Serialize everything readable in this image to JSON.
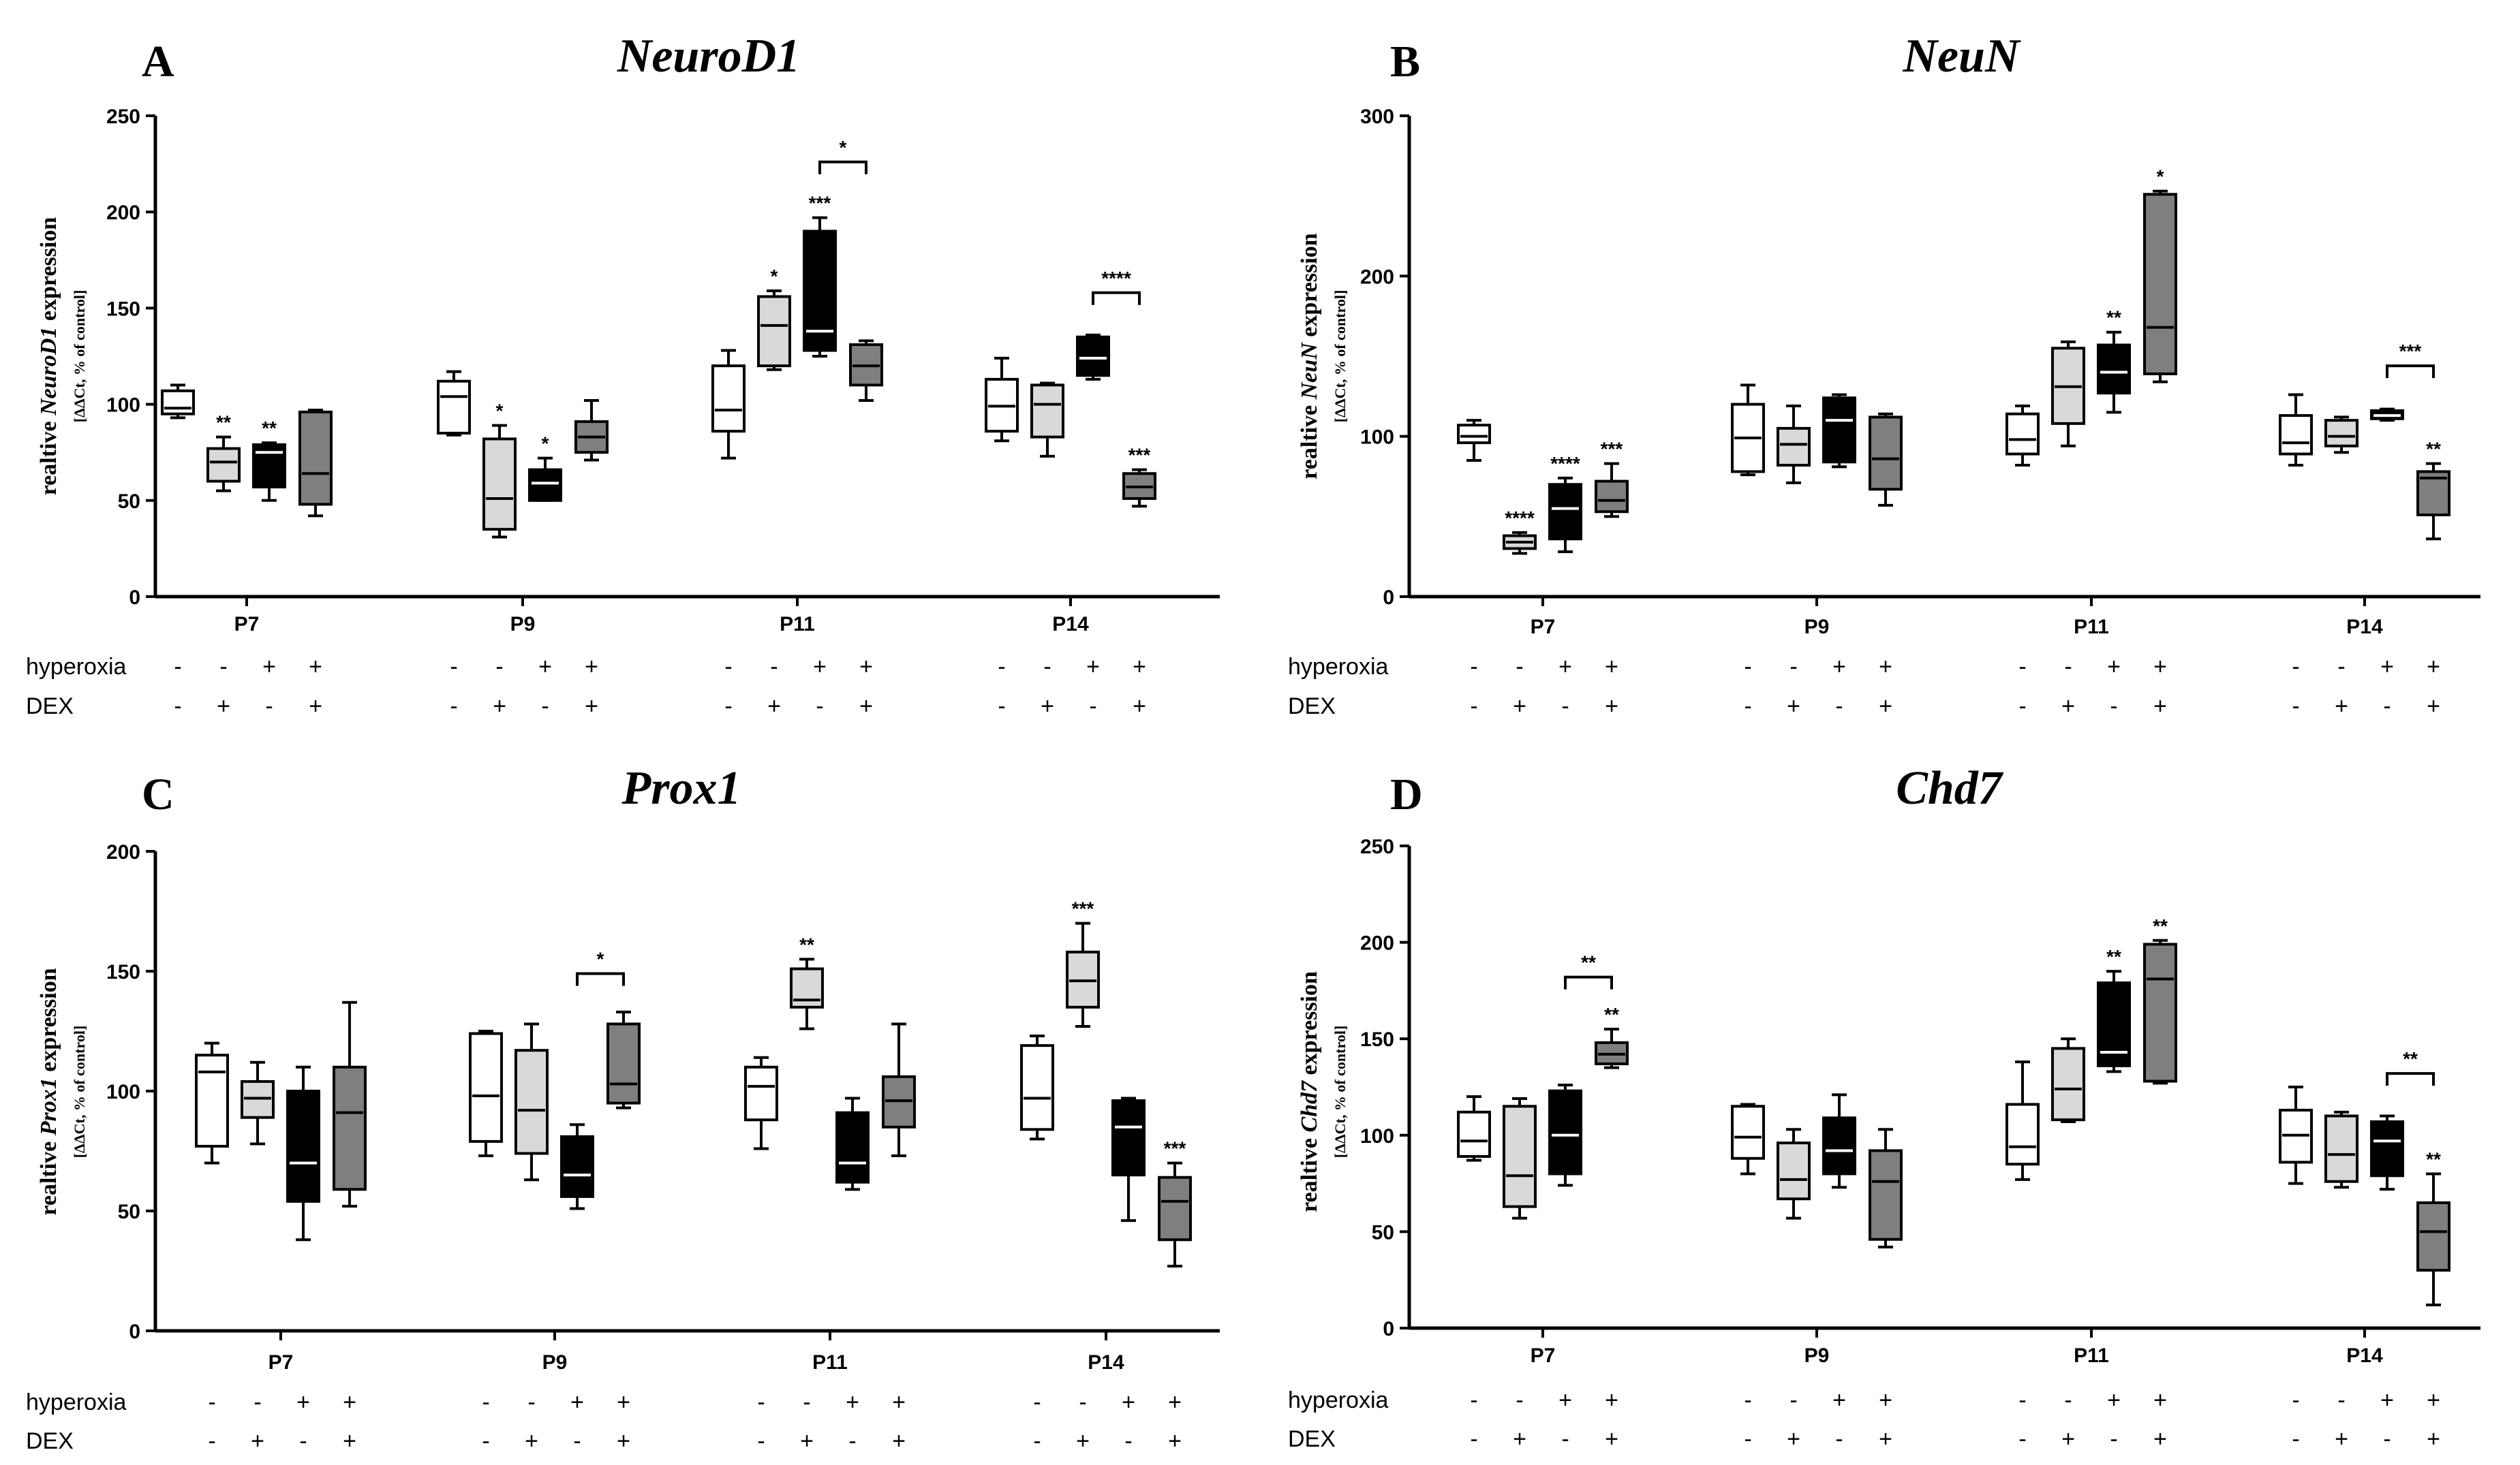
{
  "row_labels": {
    "hyperoxia": "hyperoxia",
    "dex": "DEX"
  },
  "conditions": {
    "hyperoxia": [
      "-",
      "-",
      "+",
      "+"
    ],
    "dex": [
      "-",
      "+",
      "-",
      "+"
    ]
  },
  "group_fills": [
    "#ffffff",
    "#d9d9d9",
    "#000000",
    "#7f7f7f"
  ],
  "chart_data": [
    {
      "panel": "A",
      "title": "NeuroD1",
      "type": "boxplot",
      "ylabel_prefix": "realtive ",
      "ylabel_gene": "NeuroD1",
      "ylabel_suffix": " expression",
      "ylabel_sub": "[ΔΔCt, % of control]",
      "ylim": [
        0,
        250
      ],
      "yticks": [
        "0",
        "50",
        "100",
        "150",
        "200",
        "250"
      ],
      "categories": [
        "P7",
        "P9",
        "P11",
        "P14"
      ],
      "boxes": [
        [
          {
            "min": 93,
            "q1": 95,
            "med": 98,
            "q3": 107,
            "max": 110,
            "sig": ""
          },
          {
            "min": 55,
            "q1": 60,
            "med": 70,
            "q3": 77,
            "max": 83,
            "sig": "**"
          },
          {
            "min": 50,
            "q1": 57,
            "med": 75,
            "q3": 79,
            "max": 80,
            "sig": "**"
          },
          {
            "min": 42,
            "q1": 48,
            "med": 64,
            "q3": 96,
            "max": 97,
            "sig": ""
          }
        ],
        [
          {
            "min": 84,
            "q1": 85,
            "med": 104,
            "q3": 112,
            "max": 117,
            "sig": ""
          },
          {
            "min": 31,
            "q1": 35,
            "med": 51,
            "q3": 82,
            "max": 89,
            "sig": "*"
          },
          {
            "min": 50,
            "q1": 50,
            "med": 59,
            "q3": 66,
            "max": 72,
            "sig": "*"
          },
          {
            "min": 71,
            "q1": 75,
            "med": 83,
            "q3": 91,
            "max": 102,
            "sig": ""
          }
        ],
        [
          {
            "min": 72,
            "q1": 86,
            "med": 97,
            "q3": 120,
            "max": 128,
            "sig": ""
          },
          {
            "min": 118,
            "q1": 120,
            "med": 141,
            "q3": 156,
            "max": 159,
            "sig": "*"
          },
          {
            "min": 125,
            "q1": 128,
            "med": 138,
            "q3": 190,
            "max": 197,
            "sig": "***"
          },
          {
            "min": 102,
            "q1": 110,
            "med": 120,
            "q3": 131,
            "max": 133,
            "sig": ""
          }
        ],
        [
          {
            "min": 81,
            "q1": 86,
            "med": 99,
            "q3": 113,
            "max": 124,
            "sig": ""
          },
          {
            "min": 73,
            "q1": 83,
            "med": 100,
            "q3": 110,
            "max": 111,
            "sig": ""
          },
          {
            "min": 113,
            "q1": 115,
            "med": 124,
            "q3": 135,
            "max": 136,
            "sig": ""
          },
          {
            "min": 47,
            "q1": 51,
            "med": 57,
            "q3": 64,
            "max": 66,
            "sig": "***"
          }
        ]
      ],
      "brackets": [
        {
          "group": 2,
          "from": 2,
          "to": 3,
          "y": 226,
          "label": "*"
        },
        {
          "group": 3,
          "from": 2,
          "to": 3,
          "y": 158,
          "label": "****"
        }
      ]
    },
    {
      "panel": "B",
      "title": "NeuN",
      "type": "boxplot",
      "ylabel_prefix": "realtive ",
      "ylabel_gene": "NeuN",
      "ylabel_suffix": " expression",
      "ylabel_sub": "[ΔΔCt, % of control]",
      "ylim": [
        0,
        300
      ],
      "yticks": [
        "0",
        "100",
        "200",
        "300"
      ],
      "categories": [
        "P7",
        "P9",
        "P11",
        "P14"
      ],
      "boxes": [
        [
          {
            "min": 85,
            "q1": 96,
            "med": 100,
            "q3": 107,
            "max": 110,
            "sig": ""
          },
          {
            "min": 27,
            "q1": 30,
            "med": 34,
            "q3": 38,
            "max": 40,
            "sig": "****"
          },
          {
            "min": 28,
            "q1": 36,
            "med": 55,
            "q3": 70,
            "max": 74,
            "sig": "****"
          },
          {
            "min": 50,
            "q1": 53,
            "med": 60,
            "q3": 72,
            "max": 83,
            "sig": "***"
          }
        ],
        [
          {
            "min": 76,
            "q1": 78,
            "med": 99,
            "q3": 120,
            "max": 132,
            "sig": ""
          },
          {
            "min": 71,
            "q1": 82,
            "med": 95,
            "q3": 105,
            "max": 119,
            "sig": ""
          },
          {
            "min": 81,
            "q1": 84,
            "med": 110,
            "q3": 124,
            "max": 126,
            "sig": ""
          },
          {
            "min": 57,
            "q1": 67,
            "med": 86,
            "q3": 112,
            "max": 114,
            "sig": ""
          }
        ],
        [
          {
            "min": 82,
            "q1": 89,
            "med": 98,
            "q3": 114,
            "max": 119,
            "sig": ""
          },
          {
            "min": 94,
            "q1": 108,
            "med": 131,
            "q3": 155,
            "max": 159,
            "sig": ""
          },
          {
            "min": 115,
            "q1": 127,
            "med": 140,
            "q3": 157,
            "max": 165,
            "sig": "**"
          },
          {
            "min": 134,
            "q1": 139,
            "med": 168,
            "q3": 251,
            "max": 253,
            "sig": "*"
          }
        ],
        [
          {
            "min": 82,
            "q1": 89,
            "med": 96,
            "q3": 113,
            "max": 126,
            "sig": ""
          },
          {
            "min": 90,
            "q1": 94,
            "med": 100,
            "q3": 110,
            "max": 112,
            "sig": ""
          },
          {
            "min": 110,
            "q1": 111,
            "med": 113,
            "q3": 116,
            "max": 117,
            "sig": ""
          },
          {
            "min": 36,
            "q1": 51,
            "med": 74,
            "q3": 78,
            "max": 83,
            "sig": "**"
          }
        ]
      ],
      "brackets": [
        {
          "group": 3,
          "from": 2,
          "to": 3,
          "y": 144,
          "label": "***"
        }
      ]
    },
    {
      "panel": "C",
      "title": "Prox1",
      "type": "boxplot",
      "ylabel_prefix": "realtive ",
      "ylabel_gene": "Prox1",
      "ylabel_suffix": " expression",
      "ylabel_sub": "[ΔΔCt, % of control]",
      "ylim": [
        0,
        200
      ],
      "yticks": [
        "0",
        "50",
        "100",
        "150",
        "200"
      ],
      "categories": [
        "P7",
        "P9",
        "P11",
        "P14"
      ],
      "boxes": [
        [
          {
            "min": 70,
            "q1": 77,
            "med": 108,
            "q3": 115,
            "max": 120,
            "sig": ""
          },
          {
            "min": 78,
            "q1": 89,
            "med": 97,
            "q3": 104,
            "max": 112,
            "sig": ""
          },
          {
            "min": 38,
            "q1": 54,
            "med": 70,
            "q3": 100,
            "max": 110,
            "sig": ""
          },
          {
            "min": 52,
            "q1": 59,
            "med": 91,
            "q3": 110,
            "max": 137,
            "sig": ""
          }
        ],
        [
          {
            "min": 73,
            "q1": 79,
            "med": 98,
            "q3": 124,
            "max": 125,
            "sig": ""
          },
          {
            "min": 63,
            "q1": 74,
            "med": 92,
            "q3": 117,
            "max": 128,
            "sig": ""
          },
          {
            "min": 51,
            "q1": 56,
            "med": 65,
            "q3": 81,
            "max": 86,
            "sig": ""
          },
          {
            "min": 93,
            "q1": 95,
            "med": 103,
            "q3": 128,
            "max": 133,
            "sig": ""
          }
        ],
        [
          {
            "min": 76,
            "q1": 88,
            "med": 102,
            "q3": 110,
            "max": 114,
            "sig": ""
          },
          {
            "min": 126,
            "q1": 135,
            "med": 138,
            "q3": 151,
            "max": 155,
            "sig": "**"
          },
          {
            "min": 59,
            "q1": 62,
            "med": 70,
            "q3": 91,
            "max": 97,
            "sig": ""
          },
          {
            "min": 73,
            "q1": 85,
            "med": 96,
            "q3": 106,
            "max": 128,
            "sig": ""
          }
        ],
        [
          {
            "min": 80,
            "q1": 84,
            "med": 97,
            "q3": 119,
            "max": 123,
            "sig": ""
          },
          {
            "min": 127,
            "q1": 135,
            "med": 146,
            "q3": 158,
            "max": 170,
            "sig": "***"
          },
          {
            "min": 46,
            "q1": 65,
            "med": 85,
            "q3": 96,
            "max": 97,
            "sig": ""
          },
          {
            "min": 27,
            "q1": 38,
            "med": 54,
            "q3": 64,
            "max": 70,
            "sig": "***"
          }
        ]
      ],
      "brackets": [
        {
          "group": 1,
          "from": 2,
          "to": 3,
          "y": 149,
          "label": "*"
        }
      ]
    },
    {
      "panel": "D",
      "title": "Chd7",
      "type": "boxplot",
      "ylabel_prefix": "realtive ",
      "ylabel_gene": "Chd7",
      "ylabel_suffix": " expression",
      "ylabel_sub": "[ΔΔCt, % of control]",
      "ylim": [
        0,
        250
      ],
      "yticks": [
        "0",
        "50",
        "100",
        "150",
        "200",
        "250"
      ],
      "categories": [
        "P7",
        "P9",
        "P11",
        "P14"
      ],
      "boxes": [
        [
          {
            "min": 87,
            "q1": 89,
            "med": 97,
            "q3": 112,
            "max": 120,
            "sig": ""
          },
          {
            "min": 57,
            "q1": 63,
            "med": 79,
            "q3": 115,
            "max": 119,
            "sig": ""
          },
          {
            "min": 74,
            "q1": 80,
            "med": 100,
            "q3": 123,
            "max": 126,
            "sig": ""
          },
          {
            "min": 135,
            "q1": 137,
            "med": 142,
            "q3": 148,
            "max": 155,
            "sig": "**"
          }
        ],
        [
          {
            "min": 80,
            "q1": 88,
            "med": 99,
            "q3": 115,
            "max": 116,
            "sig": ""
          },
          {
            "min": 57,
            "q1": 67,
            "med": 77,
            "q3": 96,
            "max": 103,
            "sig": ""
          },
          {
            "min": 73,
            "q1": 80,
            "med": 92,
            "q3": 109,
            "max": 121,
            "sig": ""
          },
          {
            "min": 42,
            "q1": 46,
            "med": 76,
            "q3": 92,
            "max": 103,
            "sig": ""
          }
        ],
        [
          {
            "min": 77,
            "q1": 85,
            "med": 94,
            "q3": 116,
            "max": 138,
            "sig": ""
          },
          {
            "min": 107,
            "q1": 108,
            "med": 124,
            "q3": 145,
            "max": 150,
            "sig": ""
          },
          {
            "min": 133,
            "q1": 136,
            "med": 143,
            "q3": 179,
            "max": 185,
            "sig": "**"
          },
          {
            "min": 127,
            "q1": 128,
            "med": 181,
            "q3": 199,
            "max": 201,
            "sig": "**"
          }
        ],
        [
          {
            "min": 75,
            "q1": 86,
            "med": 100,
            "q3": 113,
            "max": 125,
            "sig": ""
          },
          {
            "min": 73,
            "q1": 76,
            "med": 90,
            "q3": 110,
            "max": 112,
            "sig": ""
          },
          {
            "min": 72,
            "q1": 79,
            "med": 97,
            "q3": 107,
            "max": 110,
            "sig": ""
          },
          {
            "min": 12,
            "q1": 30,
            "med": 50,
            "q3": 65,
            "max": 80,
            "sig": "**"
          }
        ]
      ],
      "brackets": [
        {
          "group": 0,
          "from": 2,
          "to": 3,
          "y": 182,
          "label": "**"
        },
        {
          "group": 3,
          "from": 2,
          "to": 3,
          "y": 132,
          "label": "**"
        }
      ]
    }
  ]
}
